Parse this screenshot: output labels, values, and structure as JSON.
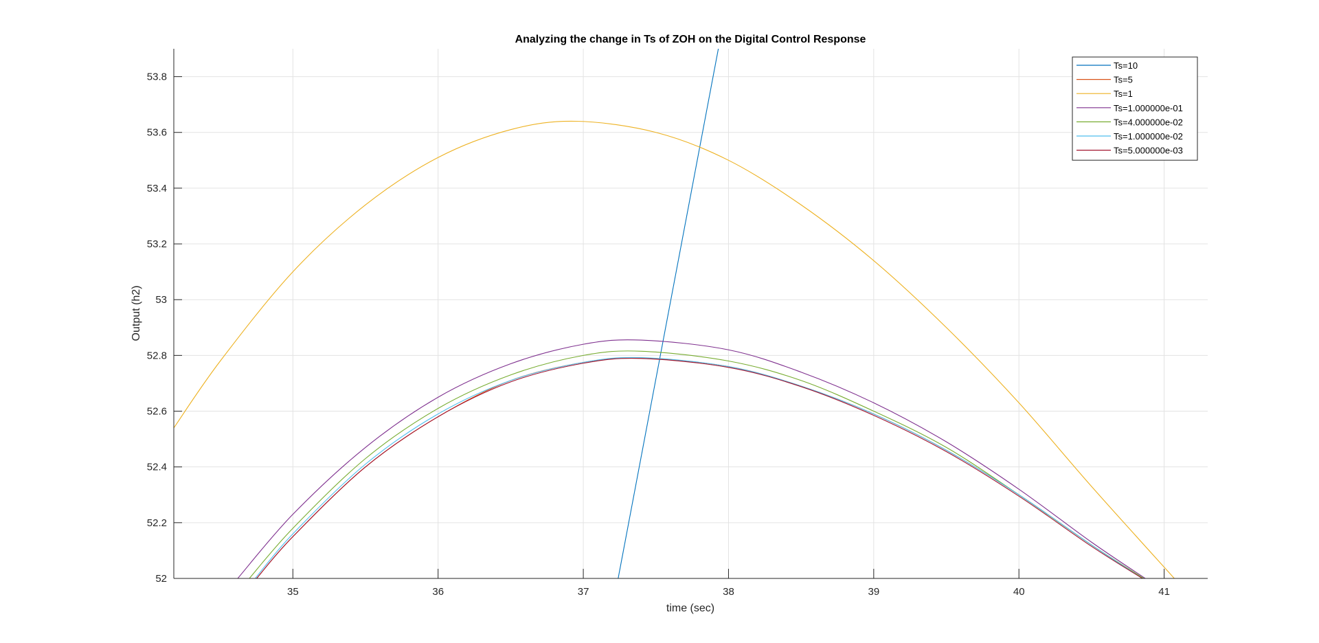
{
  "chart_data": {
    "type": "line",
    "title": "Analyzing the change in Ts of ZOH on the Digital Control Response",
    "xlabel": "time (sec)",
    "ylabel": "Output (h2)",
    "xlim": [
      34.18,
      41.3
    ],
    "ylim": [
      52.0,
      53.9
    ],
    "xticks": [
      35,
      36,
      37,
      38,
      39,
      40,
      41
    ],
    "xtick_labels": [
      "35",
      "36",
      "37",
      "38",
      "39",
      "40",
      "41"
    ],
    "yticks": [
      52,
      52.2,
      52.4,
      52.6,
      52.8,
      53,
      53.2,
      53.4,
      53.6,
      53.8
    ],
    "ytick_labels": [
      "52",
      "52.2",
      "52.4",
      "52.6",
      "52.8",
      "53",
      "53.2",
      "53.4",
      "53.6",
      "53.8"
    ],
    "grid": true,
    "legend_position": "top-right",
    "series": [
      {
        "name": "Ts=10",
        "color": "#0072BD",
        "x": [
          37.24,
          37.93
        ],
        "y": [
          52.0,
          53.9
        ]
      },
      {
        "name": "Ts=5",
        "color": "#D95319",
        "x": [
          34.75,
          35.0,
          35.5,
          36.0,
          36.5,
          37.0,
          37.4,
          38.0,
          38.5,
          39.0,
          39.5,
          40.0,
          40.5,
          40.85
        ],
        "y": [
          52.0,
          52.15,
          52.4,
          52.58,
          52.71,
          52.775,
          52.79,
          52.76,
          52.69,
          52.59,
          52.46,
          52.3,
          52.12,
          52.0
        ]
      },
      {
        "name": "Ts=1",
        "color": "#EDB120",
        "x": [
          34.18,
          34.5,
          35.0,
          35.5,
          36.0,
          36.5,
          36.95,
          37.5,
          38.0,
          38.5,
          39.0,
          39.5,
          40.0,
          40.5,
          41.07
        ],
        "y": [
          52.54,
          52.78,
          53.1,
          53.34,
          53.51,
          53.61,
          53.64,
          53.6,
          53.5,
          53.34,
          53.14,
          52.9,
          52.63,
          52.33,
          52.0
        ]
      },
      {
        "name": "Ts=1.000000e-01",
        "color": "#7E2F8E",
        "x": [
          34.62,
          35.0,
          35.5,
          36.0,
          36.5,
          37.0,
          37.4,
          38.0,
          38.5,
          39.0,
          39.5,
          40.0,
          40.5,
          40.87
        ],
        "y": [
          52.0,
          52.23,
          52.47,
          52.65,
          52.77,
          52.84,
          52.855,
          52.82,
          52.74,
          52.63,
          52.49,
          52.32,
          52.13,
          52.0
        ]
      },
      {
        "name": "Ts=4.000000e-02",
        "color": "#77AC30",
        "x": [
          34.7,
          35.0,
          35.5,
          36.0,
          36.5,
          37.0,
          37.4,
          38.0,
          38.5,
          39.0,
          39.5,
          40.0,
          40.5,
          40.86
        ],
        "y": [
          52.0,
          52.18,
          52.43,
          52.61,
          52.73,
          52.8,
          52.815,
          52.78,
          52.71,
          52.6,
          52.47,
          52.3,
          52.12,
          52.0
        ]
      },
      {
        "name": "Ts=1.000000e-02",
        "color": "#4DBEEE",
        "x": [
          34.74,
          35.0,
          35.5,
          36.0,
          36.5,
          37.0,
          37.4,
          38.0,
          38.5,
          39.0,
          39.5,
          40.0,
          40.5,
          40.85
        ],
        "y": [
          52.0,
          52.16,
          52.41,
          52.59,
          52.71,
          52.775,
          52.792,
          52.76,
          52.69,
          52.59,
          52.46,
          52.3,
          52.12,
          52.0
        ]
      },
      {
        "name": "Ts=5.000000e-03",
        "color": "#A2142F",
        "x": [
          34.75,
          35.0,
          35.5,
          36.0,
          36.5,
          37.0,
          37.4,
          38.0,
          38.5,
          39.0,
          39.5,
          40.0,
          40.5,
          40.85
        ],
        "y": [
          52.0,
          52.15,
          52.4,
          52.58,
          52.705,
          52.772,
          52.789,
          52.757,
          52.688,
          52.585,
          52.455,
          52.295,
          52.115,
          52.0
        ]
      }
    ]
  }
}
